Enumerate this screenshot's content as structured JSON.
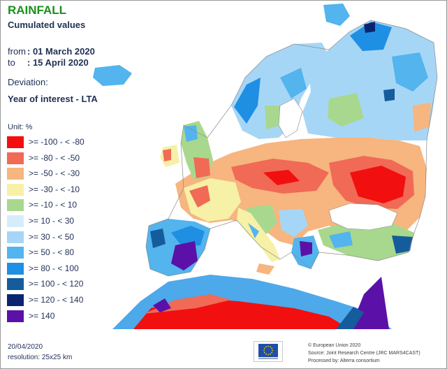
{
  "header": {
    "title": "RAINFALL",
    "subtitle": "Cumulated values"
  },
  "period": {
    "from_label": "from",
    "from_value": ": 01 March 2020",
    "to_label": "to",
    "to_value": ": 15 April 2020"
  },
  "deviation": {
    "label": "Deviation:",
    "value": "Year of interest - LTA"
  },
  "legend": {
    "unit": "Unit:  %",
    "items": [
      {
        "label": ">= -100 - < -80",
        "color": "#f20f0f"
      },
      {
        "label": ">= -80 - < -50",
        "color": "#f06a56"
      },
      {
        "label": ">= -50 - < -30",
        "color": "#f7b57f"
      },
      {
        "label": ">= -30 - < -10",
        "color": "#f6f1a6"
      },
      {
        "label": ">= -10 - < 10",
        "color": "#a8d88e"
      },
      {
        "label": ">= 10 - < 30",
        "color": "#d7ecfb"
      },
      {
        "label": ">= 30 - < 50",
        "color": "#a6d6f6"
      },
      {
        "label": ">= 50 - < 80",
        "color": "#53b4ee"
      },
      {
        "label": ">= 80 - < 100",
        "color": "#1f8fe3"
      },
      {
        "label": ">= 100 - < 120",
        "color": "#145c9c"
      },
      {
        "label": ">= 120 - < 140",
        "color": "#0b2470"
      },
      {
        "label": ">= 140",
        "color": "#5b11a8"
      }
    ]
  },
  "footer": {
    "date": "20/04/2020",
    "resolution": "resolution:  25x25 km",
    "credit_1": "© European Union 2020",
    "credit_2": "Source: Joint Research Centre (JRC MARS4CAST)",
    "credit_3": "Processed by: Alterra consortium"
  },
  "colors": {
    "sea": "#ffffff",
    "outline": "#8a8a8a",
    "eu_flag": "#1f4fa8",
    "eu_star": "#f4d31a"
  }
}
